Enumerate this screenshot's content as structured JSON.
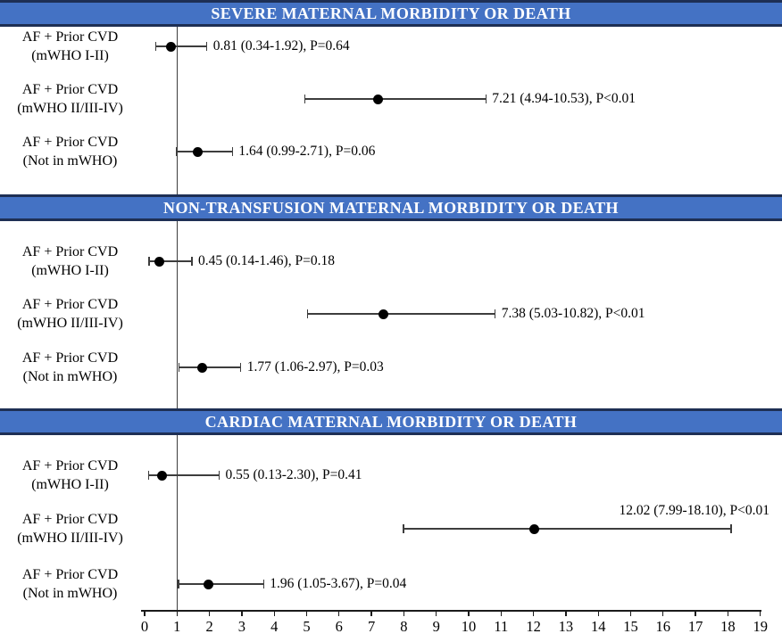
{
  "colors": {
    "banner_background": "#4472C4",
    "banner_border": "#1E2F54",
    "banner_text": "#FFFFFF",
    "ci_line": "#3d3d3d",
    "marker": "#000000",
    "axis": "#1a1a1a",
    "text": "#000000"
  },
  "chart_data": {
    "type": "forest",
    "x_axis": {
      "min": 0,
      "max": 19,
      "tick_step": 1,
      "tick_labels": [
        "0",
        "1",
        "2",
        "3",
        "4",
        "5",
        "6",
        "7",
        "8",
        "9",
        "10",
        "11",
        "12",
        "13",
        "14",
        "15",
        "16",
        "17",
        "18",
        "19"
      ],
      "reference_line_x": 1,
      "grid": false
    },
    "panels": [
      {
        "title": "SEVERE MATERNAL MORBIDITY OR DEATH",
        "rows": [
          {
            "label_line1": "AF + Prior CVD",
            "label_line2": "(mWHO I-II)",
            "estimate": 0.81,
            "ci_low": 0.34,
            "ci_high": 1.92,
            "p_value": "P=0.64",
            "annotation": "0.81 (0.34-1.92), P=0.64"
          },
          {
            "label_line1": "AF + Prior CVD",
            "label_line2": "(mWHO II/III-IV)",
            "estimate": 7.21,
            "ci_low": 4.94,
            "ci_high": 10.53,
            "p_value": "P<0.01",
            "annotation": "7.21 (4.94-10.53), P<0.01"
          },
          {
            "label_line1": "AF + Prior CVD",
            "label_line2": "(Not in mWHO)",
            "estimate": 1.64,
            "ci_low": 0.99,
            "ci_high": 2.71,
            "p_value": "P=0.06",
            "annotation": "1.64 (0.99-2.71), P=0.06"
          }
        ]
      },
      {
        "title": "NON-TRANSFUSION MATERNAL MORBIDITY OR DEATH",
        "rows": [
          {
            "label_line1": "AF + Prior CVD",
            "label_line2": "(mWHO I-II)",
            "estimate": 0.45,
            "ci_low": 0.14,
            "ci_high": 1.46,
            "p_value": "P=0.18",
            "annotation": "0.45 (0.14-1.46), P=0.18"
          },
          {
            "label_line1": "AF + Prior CVD",
            "label_line2": "(mWHO II/III-IV)",
            "estimate": 7.38,
            "ci_low": 5.03,
            "ci_high": 10.82,
            "p_value": "P<0.01",
            "annotation": "7.38 (5.03-10.82), P<0.01"
          },
          {
            "label_line1": "AF + Prior CVD",
            "label_line2": "(Not in mWHO)",
            "estimate": 1.77,
            "ci_low": 1.06,
            "ci_high": 2.97,
            "p_value": "P=0.03",
            "annotation": "1.77 (1.06-2.97), P=0.03"
          }
        ]
      },
      {
        "title": "CARDIAC MATERNAL MORBIDITY OR DEATH",
        "rows": [
          {
            "label_line1": "AF + Prior CVD",
            "label_line2": "(mWHO I-II)",
            "estimate": 0.55,
            "ci_low": 0.13,
            "ci_high": 2.3,
            "p_value": "P=0.41",
            "annotation": "0.55 (0.13-2.30), P=0.41"
          },
          {
            "label_line1": "AF + Prior CVD",
            "label_line2": "(mWHO II/III-IV)",
            "estimate": 12.02,
            "ci_low": 7.99,
            "ci_high": 18.1,
            "p_value": "P<0.01",
            "annotation": "12.02 (7.99-18.10), P<0.01"
          },
          {
            "label_line1": "AF + Prior CVD",
            "label_line2": "(Not in mWHO)",
            "estimate": 1.96,
            "ci_low": 1.05,
            "ci_high": 3.67,
            "p_value": "P=0.04",
            "annotation": "1.96 (1.05-3.67), P=0.04"
          }
        ]
      }
    ]
  }
}
